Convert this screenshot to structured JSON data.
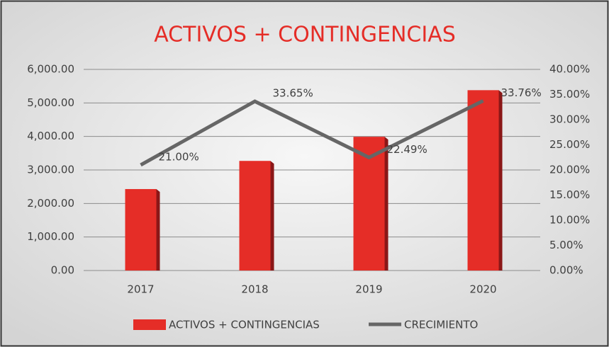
{
  "chart_data": {
    "type": "bar-line",
    "title": "ACTIVOS + CONTINGENCIAS",
    "categories": [
      "2017",
      "2018",
      "2019",
      "2020"
    ],
    "series": [
      {
        "name": "ACTIVOS + CONTINGENCIAS",
        "type": "bar",
        "color": "#e52d27",
        "values": [
          2430,
          3270,
          3990,
          5380
        ]
      },
      {
        "name": "CRECIMIENTO",
        "type": "line",
        "axis": "y2",
        "color": "#666666",
        "values": [
          21.0,
          33.65,
          22.49,
          33.76
        ],
        "value_labels": [
          "21.00%",
          "33.65%",
          "22.49%",
          "33.76%"
        ]
      }
    ],
    "ylim": [
      0,
      6000
    ],
    "yticks": [
      {
        "value": 0,
        "label": "0.00"
      },
      {
        "value": 1000,
        "label": "1,000.00"
      },
      {
        "value": 2000,
        "label": "2,000.00"
      },
      {
        "value": 3000,
        "label": "3,000.00"
      },
      {
        "value": 4000,
        "label": "4,000.00"
      },
      {
        "value": 5000,
        "label": "5,000.00"
      },
      {
        "value": 6000,
        "label": "6,000.00"
      }
    ],
    "y2lim": [
      0,
      40
    ],
    "y2ticks": [
      {
        "value": 0,
        "label": "0.00%"
      },
      {
        "value": 5,
        "label": "5.00%"
      },
      {
        "value": 10,
        "label": "10.00%"
      },
      {
        "value": 15,
        "label": "15.00%"
      },
      {
        "value": 20,
        "label": "20.00%"
      },
      {
        "value": 25,
        "label": "25.00%"
      },
      {
        "value": 30,
        "label": "30.00%"
      },
      {
        "value": 35,
        "label": "35.00%"
      },
      {
        "value": 40,
        "label": "40.00%"
      }
    ],
    "grid": true,
    "legend": "bottom"
  }
}
